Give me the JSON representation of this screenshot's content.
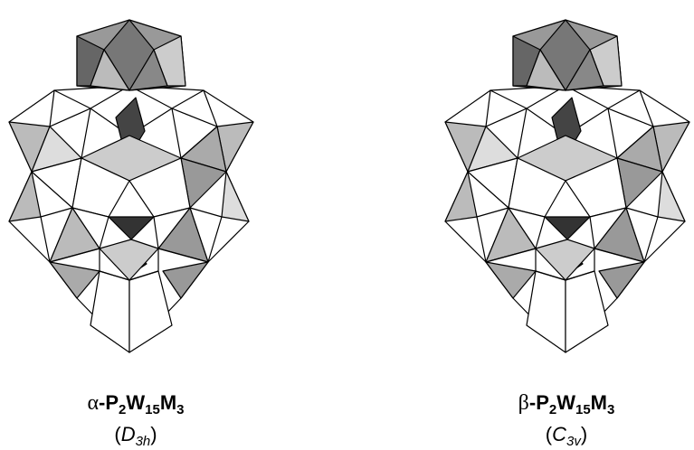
{
  "structures": [
    {
      "formula": [
        "α",
        "-P",
        "2",
        "W",
        "15",
        "M",
        "3"
      ],
      "symmetry": [
        "(",
        "D",
        "3h",
        ")"
      ]
    },
    {
      "formula": [
        "β",
        "-P",
        "2",
        "W",
        "15",
        "M",
        "3"
      ],
      "symmetry": [
        "(",
        "C",
        "3v",
        ")"
      ]
    }
  ]
}
